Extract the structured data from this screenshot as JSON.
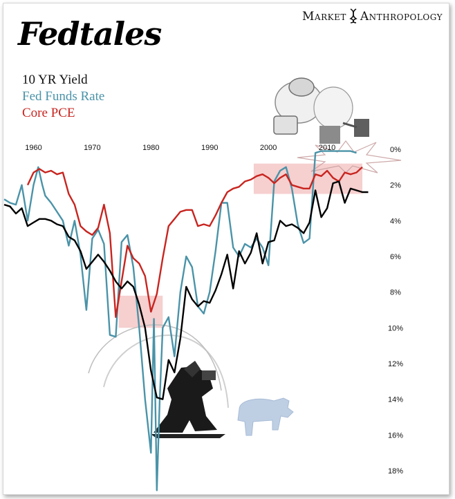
{
  "brand": {
    "left": "Market",
    "right": "Anthropology"
  },
  "chart_data": {
    "type": "line",
    "title": "Fedtales",
    "x_range": [
      1955,
      2020
    ],
    "y_range_percent": [
      0,
      18
    ],
    "y_inverted": true,
    "x_tick_labels": [
      "1960",
      "1970",
      "1980",
      "1990",
      "2000",
      "2010"
    ],
    "x_ticks": [
      1960,
      1970,
      1980,
      1990,
      2000,
      2010
    ],
    "y_tick_labels": [
      "0%",
      "2%",
      "4%",
      "6%",
      "8%",
      "10%",
      "12%",
      "14%",
      "16%",
      "18%"
    ],
    "y_ticks": [
      0,
      2,
      4,
      6,
      8,
      10,
      12,
      14,
      16,
      18
    ],
    "legend_position": "top-left",
    "grid": false,
    "series": [
      {
        "name": "10 YR Yield",
        "color": "#000000",
        "points": [
          [
            1955,
            3.1
          ],
          [
            1956,
            3.2
          ],
          [
            1957,
            3.6
          ],
          [
            1958,
            3.3
          ],
          [
            1959,
            4.3
          ],
          [
            1960,
            4.1
          ],
          [
            1961,
            3.9
          ],
          [
            1962,
            3.9
          ],
          [
            1963,
            4.0
          ],
          [
            1964,
            4.2
          ],
          [
            1965,
            4.3
          ],
          [
            1966,
            4.9
          ],
          [
            1967,
            5.1
          ],
          [
            1968,
            5.7
          ],
          [
            1969,
            6.7
          ],
          [
            1970,
            6.3
          ],
          [
            1971,
            5.9
          ],
          [
            1972,
            6.3
          ],
          [
            1973,
            6.8
          ],
          [
            1974,
            7.4
          ],
          [
            1975,
            7.8
          ],
          [
            1976,
            7.4
          ],
          [
            1977,
            7.7
          ],
          [
            1978,
            8.7
          ],
          [
            1979,
            10.0
          ],
          [
            1980,
            12.4
          ],
          [
            1981,
            13.9
          ],
          [
            1982,
            14.0
          ],
          [
            1983,
            11.8
          ],
          [
            1984,
            12.5
          ],
          [
            1985,
            10.6
          ],
          [
            1986,
            7.7
          ],
          [
            1987,
            8.4
          ],
          [
            1988,
            8.8
          ],
          [
            1989,
            8.5
          ],
          [
            1990,
            8.6
          ],
          [
            1991,
            7.9
          ],
          [
            1992,
            7.0
          ],
          [
            1993,
            5.9
          ],
          [
            1994,
            7.8
          ],
          [
            1995,
            5.7
          ],
          [
            1996,
            6.4
          ],
          [
            1997,
            5.8
          ],
          [
            1998,
            4.7
          ],
          [
            1999,
            6.4
          ],
          [
            2000,
            5.2
          ],
          [
            2001,
            5.1
          ],
          [
            2002,
            4.0
          ],
          [
            2003,
            4.3
          ],
          [
            2004,
            4.2
          ],
          [
            2005,
            4.4
          ],
          [
            2006,
            4.7
          ],
          [
            2007,
            4.1
          ],
          [
            2008,
            2.3
          ],
          [
            2009,
            3.8
          ],
          [
            2010,
            3.3
          ],
          [
            2011,
            1.9
          ],
          [
            2012,
            1.8
          ],
          [
            2013,
            3.0
          ],
          [
            2014,
            2.2
          ],
          [
            2015,
            2.3
          ],
          [
            2016,
            2.4
          ],
          [
            2017,
            2.4
          ]
        ]
      },
      {
        "name": "Fed Funds Rate",
        "color": "#4a93a8",
        "points": [
          [
            1955,
            2.8
          ],
          [
            1956,
            3.0
          ],
          [
            1957,
            3.1
          ],
          [
            1958,
            2.0
          ],
          [
            1959,
            4.0
          ],
          [
            1960,
            2.0
          ],
          [
            1960.8,
            1.0
          ],
          [
            1961.5,
            2.0
          ],
          [
            1962,
            2.6
          ],
          [
            1963,
            3.0
          ],
          [
            1964,
            3.5
          ],
          [
            1965,
            4.0
          ],
          [
            1966,
            5.4
          ],
          [
            1967,
            4.0
          ],
          [
            1968,
            5.9
          ],
          [
            1969,
            9.0
          ],
          [
            1970,
            5.0
          ],
          [
            1971,
            4.5
          ],
          [
            1972,
            5.3
          ],
          [
            1973,
            10.4
          ],
          [
            1974,
            10.5
          ],
          [
            1975,
            5.2
          ],
          [
            1976,
            4.8
          ],
          [
            1977,
            6.6
          ],
          [
            1978,
            10.0
          ],
          [
            1979,
            14.0
          ],
          [
            1980,
            17.0
          ],
          [
            1980.5,
            9.5
          ],
          [
            1981,
            19.1
          ],
          [
            1981.5,
            14.0
          ],
          [
            1982,
            10.0
          ],
          [
            1983,
            9.4
          ],
          [
            1984,
            11.6
          ],
          [
            1985,
            8.0
          ],
          [
            1986,
            6.0
          ],
          [
            1987,
            6.6
          ],
          [
            1988,
            8.8
          ],
          [
            1989,
            9.2
          ],
          [
            1990,
            8.0
          ],
          [
            1991,
            5.7
          ],
          [
            1992,
            3.0
          ],
          [
            1993,
            3.0
          ],
          [
            1994,
            5.5
          ],
          [
            1995,
            6.0
          ],
          [
            1996,
            5.3
          ],
          [
            1997,
            5.5
          ],
          [
            1998,
            5.0
          ],
          [
            1999,
            5.5
          ],
          [
            2000,
            6.5
          ],
          [
            2001,
            1.8
          ],
          [
            2002,
            1.2
          ],
          [
            2003,
            1.0
          ],
          [
            2004,
            2.2
          ],
          [
            2005,
            4.2
          ],
          [
            2006,
            5.25
          ],
          [
            2007,
            5.0
          ],
          [
            2008,
            0.2
          ],
          [
            2009,
            0.1
          ],
          [
            2010,
            0.1
          ],
          [
            2012,
            0.1
          ],
          [
            2014,
            0.1
          ],
          [
            2015,
            0.2
          ]
        ]
      },
      {
        "name": "Core PCE",
        "color": "#c8241f",
        "points": [
          [
            1959,
            2.0
          ],
          [
            1960,
            1.3
          ],
          [
            1961,
            1.1
          ],
          [
            1962,
            1.3
          ],
          [
            1963,
            1.2
          ],
          [
            1964,
            1.4
          ],
          [
            1965,
            1.3
          ],
          [
            1966,
            2.5
          ],
          [
            1967,
            3.1
          ],
          [
            1968,
            4.3
          ],
          [
            1969,
            4.6
          ],
          [
            1970,
            4.8
          ],
          [
            1971,
            4.4
          ],
          [
            1972,
            3.1
          ],
          [
            1973,
            4.7
          ],
          [
            1974,
            9.4
          ],
          [
            1975,
            7.4
          ],
          [
            1976,
            5.4
          ],
          [
            1977,
            6.1
          ],
          [
            1978,
            6.4
          ],
          [
            1979,
            7.1
          ],
          [
            1980,
            9.1
          ],
          [
            1981,
            8.1
          ],
          [
            1982,
            6.1
          ],
          [
            1983,
            4.3
          ],
          [
            1984,
            3.9
          ],
          [
            1985,
            3.5
          ],
          [
            1986,
            3.4
          ],
          [
            1987,
            3.4
          ],
          [
            1988,
            4.3
          ],
          [
            1989,
            4.2
          ],
          [
            1990,
            4.3
          ],
          [
            1991,
            3.7
          ],
          [
            1992,
            3.0
          ],
          [
            1993,
            2.4
          ],
          [
            1994,
            2.2
          ],
          [
            1995,
            2.1
          ],
          [
            1996,
            1.8
          ],
          [
            1997,
            1.7
          ],
          [
            1998,
            1.5
          ],
          [
            1999,
            1.4
          ],
          [
            2000,
            1.6
          ],
          [
            2001,
            1.9
          ],
          [
            2002,
            1.6
          ],
          [
            2003,
            1.4
          ],
          [
            2004,
            2.0
          ],
          [
            2005,
            2.1
          ],
          [
            2006,
            2.2
          ],
          [
            2007,
            2.2
          ],
          [
            2008,
            1.4
          ],
          [
            2009,
            1.5
          ],
          [
            2010,
            1.2
          ],
          [
            2011,
            1.6
          ],
          [
            2012,
            1.8
          ],
          [
            2013,
            1.3
          ],
          [
            2014,
            1.4
          ],
          [
            2015,
            1.3
          ],
          [
            2016,
            1.0
          ]
        ]
      }
    ],
    "shaded_regions": [
      {
        "x": [
          1974.5,
          1982
        ],
        "y": [
          8.2,
          10.0
        ],
        "color": "#f4c7c7"
      },
      {
        "x": [
          1997.5,
          2016
        ],
        "y": [
          0.8,
          2.5
        ],
        "color": "#f4c7c7"
      }
    ]
  },
  "decor": {
    "bull": "bull-illustration",
    "warrior": "warrior-illustration",
    "fighters": "fighters-illustration"
  }
}
